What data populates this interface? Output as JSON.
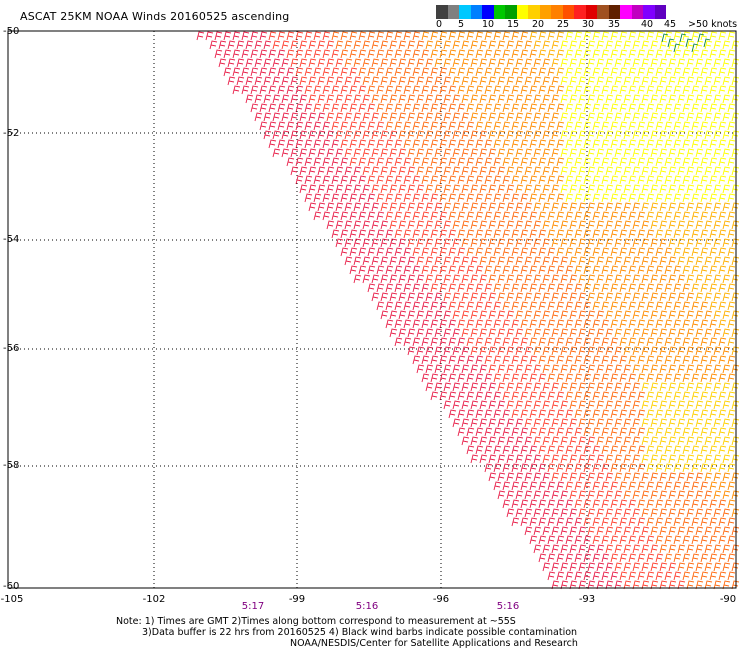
{
  "title": "ASCAT 25KM NOAA Winds 20160525 ascending",
  "colorbar": {
    "labels": [
      "0",
      "5",
      "10",
      "15",
      "20",
      "25",
      "30",
      "35",
      "40",
      "45",
      ">50 knots"
    ],
    "colors": [
      "#404040",
      "#808080",
      "#00c8ff",
      "#0080ff",
      "#0000ff",
      "#00c800",
      "#00a000",
      "#ffff00",
      "#ffd000",
      "#ffa000",
      "#ff8000",
      "#ff5000",
      "#ff2020",
      "#e00000",
      "#a05020",
      "#602000",
      "#ff00ff",
      "#c000c0",
      "#8000ff",
      "#6000c0"
    ]
  },
  "map": {
    "lat_labels": [
      "-50",
      "-52",
      "-54",
      "-56",
      "-58",
      "-60"
    ],
    "lon_labels": [
      "-105",
      "-102",
      "-99",
      "-96",
      "-93",
      "-90"
    ],
    "time_labels": [
      "5:17",
      "5:16",
      "5:16"
    ]
  },
  "notes": [
    "Note: 1) Times are GMT 2)Times along bottom correspond to measurement at ~55S",
    "3)Data buffer is 22 hrs from 20160525 4) Black wind barbs indicate possible contamination",
    "NOAA/NESDIS/Center for Satellite Applications and Research"
  ]
}
